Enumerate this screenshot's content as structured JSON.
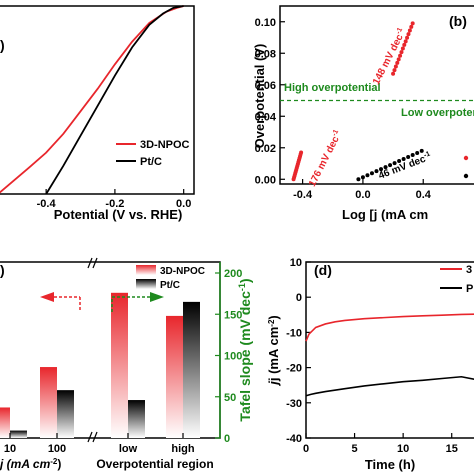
{
  "colors": {
    "red": "#e8262c",
    "black": "#000000",
    "green": "#1e8a1e"
  },
  "chart_data": [
    {
      "panel": "a",
      "type": "line",
      "xlabel": "Potential (V vs. RHE)",
      "xticks": [
        "-0.4",
        "-0.2",
        "0.0"
      ],
      "xlim": [
        -0.54,
        0.03
      ],
      "ylim": [
        -1,
        0
      ],
      "series": [
        {
          "name": "3D-NPOC",
          "color": "#e8262c",
          "x": [
            -0.54,
            -0.45,
            -0.4,
            -0.35,
            -0.3,
            -0.25,
            -0.2,
            -0.15,
            -0.1,
            -0.05,
            -0.02,
            0.0
          ],
          "y": [
            -1.0,
            -0.86,
            -0.78,
            -0.68,
            -0.56,
            -0.44,
            -0.31,
            -0.19,
            -0.09,
            -0.03,
            -0.01,
            0.0
          ]
        },
        {
          "name": "Pt/C",
          "color": "#000000",
          "x": [
            -0.4,
            -0.35,
            -0.3,
            -0.25,
            -0.2,
            -0.15,
            -0.1,
            -0.06,
            -0.03,
            0.0
          ],
          "y": [
            -1.0,
            -0.85,
            -0.69,
            -0.53,
            -0.37,
            -0.22,
            -0.1,
            -0.04,
            -0.01,
            0.0
          ]
        }
      ]
    },
    {
      "panel": "b",
      "type": "scatter",
      "title": "(b)",
      "xlabel": "Log [j (mA cm",
      "ylabel": "Overpotential (V)",
      "xticks": [
        "-0.4",
        "0.0",
        "0.4"
      ],
      "yticks": [
        "0.00",
        "0.02",
        "0.04",
        "0.06",
        "0.08",
        "0.10"
      ],
      "xlim": [
        -0.55,
        0.75
      ],
      "ylim": [
        -0.003,
        0.11
      ],
      "threshold": 0.05,
      "region_labels": [
        "High overpotential",
        "Low overpotential"
      ],
      "series": [
        {
          "name": "148 mV dec",
          "color": "#e8262c",
          "x": [
            0.2,
            0.33
          ],
          "y": [
            0.067,
            0.099
          ]
        },
        {
          "name": "176 mV dec",
          "color": "#e8262c",
          "x": [
            -0.46,
            -0.41
          ],
          "y": [
            0.0,
            0.017
          ]
        },
        {
          "name": "46 mV dec",
          "color": "#000000",
          "x": [
            -0.03,
            0.39
          ],
          "y": [
            0.0,
            0.018
          ]
        }
      ],
      "annotations": [
        "148 mV dec",
        "176 mV dec",
        "46 mV dec"
      ]
    },
    {
      "panel": "c",
      "type": "bar",
      "ylabel": "Tafel slope (mV dec",
      "yticks": [
        "0",
        "50",
        "100",
        "150",
        "200"
      ],
      "ylim": [
        0,
        200
      ],
      "left_categories": [
        "10",
        "100"
      ],
      "left_xlabel": "j (mA cm",
      "right_categories": [
        "low",
        "high"
      ],
      "right_xlabel": "Overpotential region",
      "series": [
        {
          "name": "3D-NPOC",
          "color": "#e8262c",
          "left_values": [
            37,
            86
          ],
          "right_values": [
            176,
            148
          ]
        },
        {
          "name": "Pt/C",
          "color": "#000000",
          "left_values": [
            9,
            58
          ],
          "right_values": [
            46,
            165
          ]
        }
      ]
    },
    {
      "panel": "d",
      "type": "line",
      "title": "(d)",
      "xlabel": "Time (h)",
      "ylabel": "j (mA cm",
      "xticks": [
        "0",
        "5",
        "10",
        "15"
      ],
      "yticks": [
        "-40",
        "-30",
        "-20",
        "-10",
        "0",
        "10"
      ],
      "xlim": [
        0,
        17.5
      ],
      "ylim": [
        -40,
        10
      ],
      "series": [
        {
          "name": "3",
          "color": "#e8262c",
          "x": [
            0,
            0.3,
            1,
            2,
            3,
            4,
            6,
            8,
            10,
            12,
            14,
            16,
            17.5
          ],
          "y": [
            -12.5,
            -10.5,
            -8.6,
            -7.6,
            -7.0,
            -6.6,
            -6.1,
            -5.8,
            -5.5,
            -5.3,
            -5.1,
            -4.9,
            -4.8
          ]
        },
        {
          "name": "P",
          "color": "#000000",
          "x": [
            0,
            0.5,
            1,
            2,
            4,
            6,
            8,
            10,
            12,
            14,
            16,
            17.5
          ],
          "y": [
            -28.0,
            -27.6,
            -27.3,
            -26.8,
            -26.0,
            -25.2,
            -24.6,
            -24.0,
            -23.6,
            -23.1,
            -22.6,
            -23.4
          ]
        }
      ]
    }
  ]
}
